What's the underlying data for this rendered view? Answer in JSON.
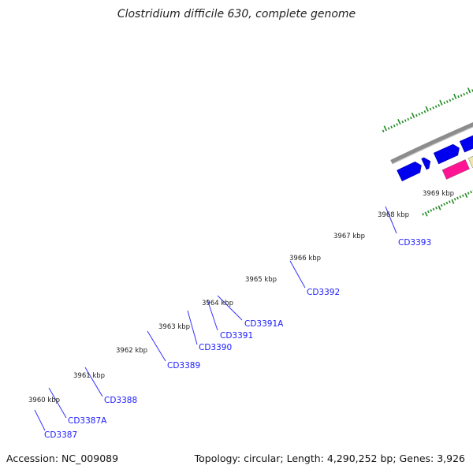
{
  "title": "Clostridium difficile 630, complete genome",
  "footer": {
    "accession": "Accession: NC_009089",
    "summary": "Topology: circular; Length: 4,290,252 bp; Genes: 3,926"
  },
  "colors": {
    "backbone": "#8c8c8c",
    "cds_forward": "#0000ee",
    "tick": "#228b22",
    "gene_label": "#1a1aff",
    "callout_line": "#3333ff"
  },
  "axis_labels": [
    "3960 kbp",
    "3961 kbp",
    "3962 kbp",
    "3963 kbp",
    "3964 kbp",
    "3965 kbp",
    "3966 kbp",
    "3967 kbp",
    "3968 kbp",
    "3969 kbp"
  ],
  "genes": [
    "CD3387",
    "CD3387A",
    "CD3388",
    "CD3389",
    "CD3390",
    "CD3391",
    "CD3391A",
    "CD3392",
    "CD3393"
  ],
  "annotated_feature_colors": [
    "#ff1493",
    "#eee8aa",
    "#6b8e23",
    "#f08080",
    "#00cccc"
  ]
}
